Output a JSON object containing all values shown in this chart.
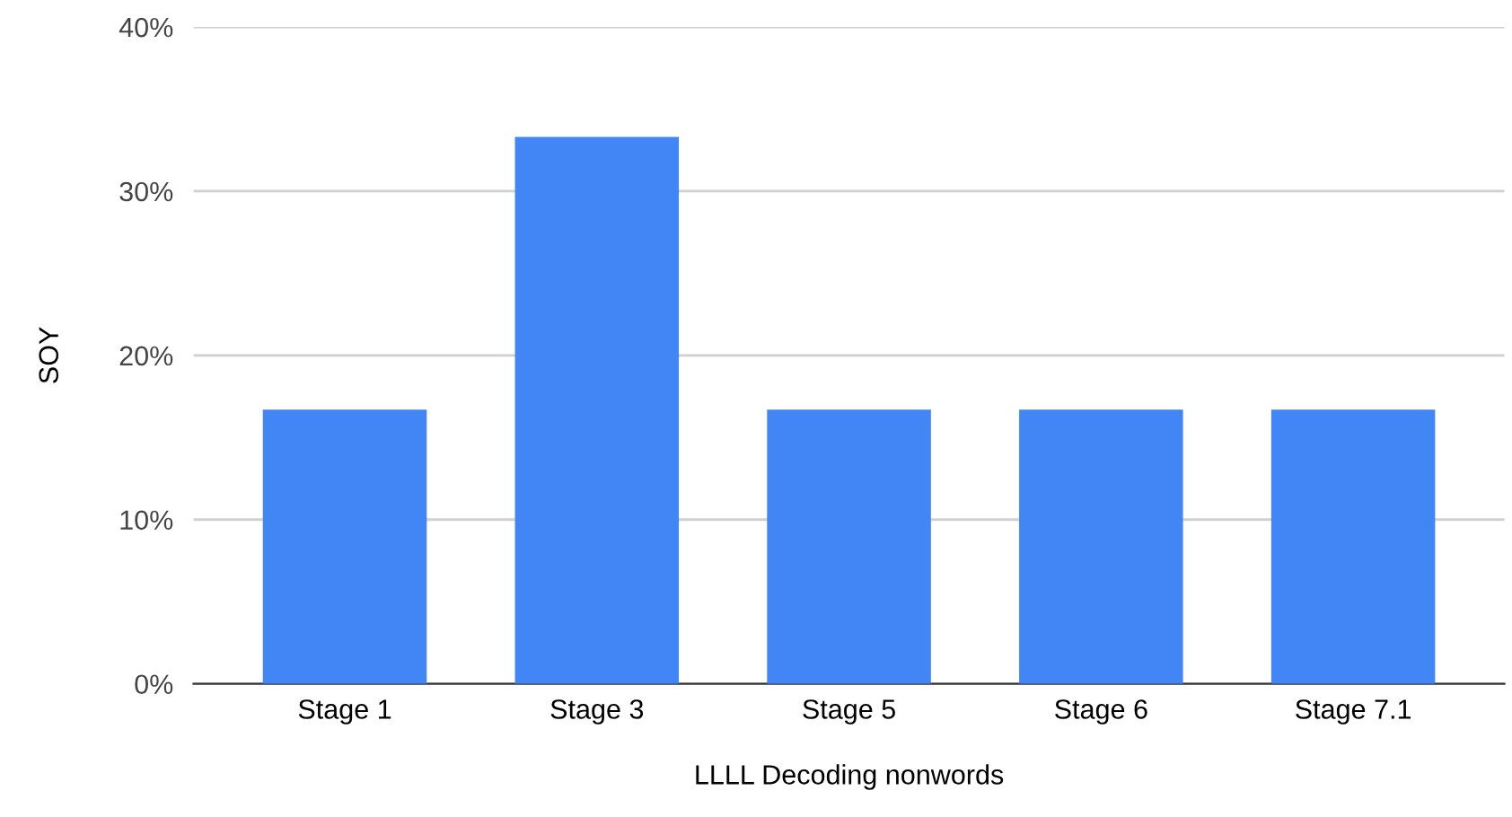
{
  "chart_data": {
    "type": "bar",
    "xlabel": "LLLL Decoding nonwords",
    "ylabel": "SOY",
    "categories": [
      "Stage 1",
      "Stage 3",
      "Stage 5",
      "Stage 6",
      "Stage 7.1"
    ],
    "values": [
      16.7,
      33.3,
      16.7,
      16.7,
      16.7
    ],
    "color": "#4285f4",
    "ylim": [
      0,
      40
    ],
    "yticks": [
      {
        "value": 0,
        "label": "0%"
      },
      {
        "value": 10,
        "label": "10%"
      },
      {
        "value": 20,
        "label": "20%"
      },
      {
        "value": 30,
        "label": "30%"
      },
      {
        "value": 40,
        "label": "40%"
      }
    ],
    "grid": "y"
  }
}
